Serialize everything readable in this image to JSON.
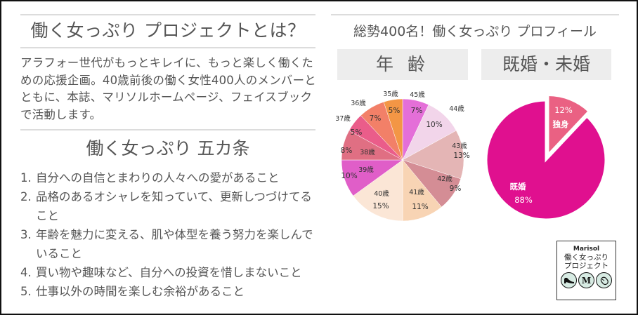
{
  "left": {
    "title": "働く女っぷり プロジェクトとは？",
    "intro": "アラフォー世代がもっとキレイに、もっと楽しく働くための応援企画。40歳前後の働く女性400人のメンバーとともに、本誌、マリソルホームページ、フェイスブックで活動します。",
    "rules_title": "働く女っぷり 五カ条",
    "rules": [
      {
        "num": "1.",
        "text": "自分への自信とまわりの人々への愛があること"
      },
      {
        "num": "2.",
        "text": "品格のあるオシャレを知っていて、更新しつづけてること"
      },
      {
        "num": "3.",
        "text": "年齢を魅力に変える、肌や体型を養う努力を楽しんでいること"
      },
      {
        "num": "4.",
        "text": "買い物や趣味など、自分への投資を惜しまないこと"
      },
      {
        "num": "5.",
        "text": "仕事以外の時間を楽しむ余裕があること"
      }
    ]
  },
  "right": {
    "title": "総勢400名！働く女っぷり プロフィール",
    "age_label": "年 齢",
    "marital_label": "既婚・未婚",
    "logo": {
      "brand": "Marisol",
      "line1": "働く女っぷり",
      "line2": "プロジェクト",
      "icons": [
        "shoe-icon",
        "m-letter-icon",
        "mouse-icon"
      ],
      "m_letter": "M"
    }
  },
  "chart_data": [
    {
      "type": "pie",
      "title": "年 齢",
      "categories": [
        "45歳",
        "44歳",
        "43歳",
        "42歳",
        "41歳",
        "40歳",
        "39歳",
        "38歳",
        "37歳",
        "36歳",
        "35歳"
      ],
      "values": [
        7,
        10,
        13,
        9,
        11,
        15,
        10,
        8,
        5,
        7,
        5
      ],
      "labels": [
        "7%",
        "10%",
        "13%",
        "9%",
        "11%",
        "15%",
        "10%",
        "8%",
        "5%",
        "7%",
        "5%"
      ],
      "colors": [
        "#e46fd8",
        "#f2d5ea",
        "#e4b5b5",
        "#d48d95",
        "#f8d4b4",
        "#fbe6d6",
        "#e05ec8",
        "#e06f83",
        "#ea5d8a",
        "#f28068",
        "#f39645"
      ],
      "start_angle_deg": 0,
      "direction": "clockwise",
      "unit": "%"
    },
    {
      "type": "pie",
      "title": "既婚・未婚",
      "categories": [
        "独身",
        "既婚"
      ],
      "values": [
        12,
        88
      ],
      "labels": [
        "12%",
        "88%"
      ],
      "colors": [
        "#ea6183",
        "#e0108f"
      ],
      "exploded": [
        "独身"
      ],
      "start_angle_deg": 0,
      "direction": "clockwise",
      "unit": "%"
    }
  ]
}
